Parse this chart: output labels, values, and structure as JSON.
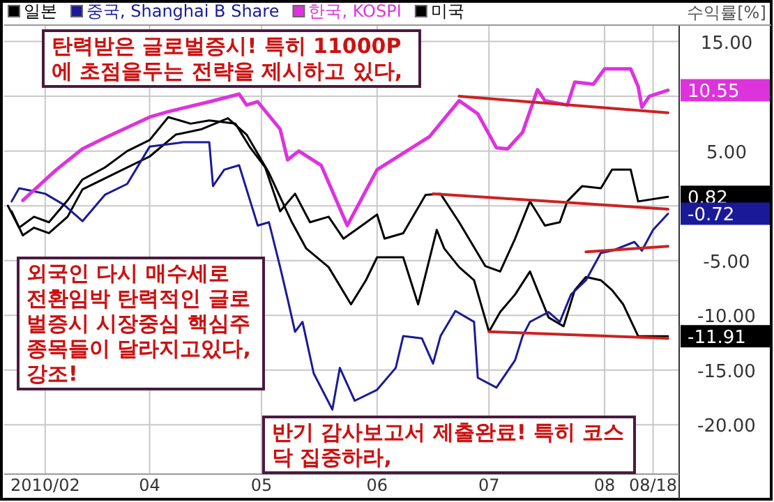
{
  "chart_data": {
    "type": "line",
    "ylabel": "수익률[%]",
    "xlim": [
      "2010-02-21",
      "2010-08-21"
    ],
    "xticks": [
      {
        "value": "2010-03-04",
        "label": "2010/02"
      },
      {
        "value": "2010-04-01",
        "label": "04"
      },
      {
        "value": "2010-05-01",
        "label": "05"
      },
      {
        "value": "2010-06-01",
        "label": "06"
      },
      {
        "value": "2010-07-01",
        "label": "07"
      },
      {
        "value": "2010-08-01",
        "label": "08"
      },
      {
        "value": "2010-08-14",
        "label": "08/18"
      }
    ],
    "ylim": [
      -24.5,
      16.5
    ],
    "yticks": [
      {
        "value": 15,
        "label": "15.00"
      },
      {
        "value": 10,
        "label": null
      },
      {
        "value": 5,
        "label": "5.00"
      },
      {
        "value": 0,
        "label": null
      },
      {
        "value": -5,
        "label": "-5.00"
      },
      {
        "value": -10,
        "label": "-10.00"
      },
      {
        "value": -15,
        "label": "-15.00"
      },
      {
        "value": -20,
        "label": "-20.00"
      }
    ],
    "grid": true,
    "legend": "top",
    "series": [
      {
        "name": "일본",
        "color": "#000000",
        "x": [
          "2010-02-23",
          "2010-02-26",
          "2010-03-01",
          "2010-03-05",
          "2010-03-10",
          "2010-03-14",
          "2010-03-20",
          "2010-03-26",
          "2010-04-01",
          "2010-04-08",
          "2010-04-15",
          "2010-04-22",
          "2010-04-27",
          "2010-05-03",
          "2010-05-09",
          "2010-05-13",
          "2010-05-19",
          "2010-05-25",
          "2010-05-29",
          "2010-06-01",
          "2010-06-08",
          "2010-06-12",
          "2010-06-17",
          "2010-06-19",
          "2010-06-23",
          "2010-06-27",
          "2010-07-01",
          "2010-07-04",
          "2010-07-08",
          "2010-07-12",
          "2010-07-14",
          "2010-07-17",
          "2010-07-21",
          "2010-07-24",
          "2010-07-27",
          "2010-07-31",
          "2010-08-03",
          "2010-08-06",
          "2010-08-10",
          "2010-08-18"
        ],
        "values": [
          -0.5,
          -2.7,
          -2.0,
          -2.5,
          -1.0,
          1.5,
          2.5,
          3.5,
          4.5,
          6.5,
          7.0,
          8.0,
          6.5,
          3.0,
          -1.4,
          -3.9,
          -5.6,
          -9.0,
          -6.8,
          -4.7,
          -4.7,
          -9.0,
          -2.2,
          -3.9,
          -5.6,
          -6.8,
          -11.5,
          -9.7,
          -8.1,
          -6.0,
          -7.7,
          -10.2,
          -11.0,
          -7.7,
          -6.5,
          -6.8,
          -7.7,
          -9.0,
          -11.9,
          -11.91
        ]
      },
      {
        "name": "중국, Shanghai B Share",
        "color": "#1a1a99",
        "x": [
          "2010-02-23",
          "2010-02-25",
          "2010-02-28",
          "2010-03-04",
          "2010-03-09",
          "2010-03-14",
          "2010-03-20",
          "2010-03-26",
          "2010-04-01",
          "2010-04-10",
          "2010-04-17",
          "2010-04-18",
          "2010-04-21",
          "2010-04-25",
          "2010-04-28",
          "2010-04-30",
          "2010-05-03",
          "2010-05-06",
          "2010-05-08",
          "2010-05-10",
          "2010-05-12",
          "2010-05-15",
          "2010-05-20",
          "2010-05-22",
          "2010-05-26",
          "2010-06-01",
          "2010-06-06",
          "2010-06-08",
          "2010-06-13",
          "2010-06-16",
          "2010-06-18",
          "2010-06-22",
          "2010-06-27",
          "2010-06-28",
          "2010-07-03",
          "2010-07-08",
          "2010-07-10",
          "2010-07-12",
          "2010-07-17",
          "2010-07-20",
          "2010-07-23",
          "2010-07-27",
          "2010-07-31",
          "2010-08-03",
          "2010-08-09",
          "2010-08-11",
          "2010-08-14",
          "2010-08-18"
        ],
        "values": [
          0.4,
          1.6,
          1.4,
          1.1,
          0.1,
          -1.4,
          1.0,
          2.0,
          5.4,
          5.8,
          5.8,
          1.8,
          3.3,
          3.7,
          0.4,
          -1.8,
          -1.5,
          -5.6,
          -8.5,
          -11.5,
          -10.6,
          -15.3,
          -18.6,
          -14.8,
          -17.8,
          -16.8,
          -14.8,
          -11.9,
          -12.1,
          -14.4,
          -11.9,
          -9.6,
          -10.6,
          -15.7,
          -16.6,
          -14.1,
          -11.9,
          -10.6,
          -9.7,
          -10.6,
          -8.1,
          -6.8,
          -4.3,
          -4.1,
          -3.3,
          -4.1,
          -2.2,
          -0.72
        ]
      },
      {
        "name": "한국, KOSPI",
        "color": "#dd33dd",
        "x": [
          "2010-02-26",
          "2010-03-07",
          "2010-03-14",
          "2010-03-20",
          "2010-04-01",
          "2010-04-06",
          "2010-04-17",
          "2010-04-25",
          "2010-04-27",
          "2010-04-30",
          "2010-05-06",
          "2010-05-08",
          "2010-05-11",
          "2010-05-17",
          "2010-05-24",
          "2010-06-01",
          "2010-06-15",
          "2010-06-23",
          "2010-06-28",
          "2010-07-03",
          "2010-07-06",
          "2010-07-10",
          "2010-07-14",
          "2010-07-16",
          "2010-07-22",
          "2010-07-24",
          "2010-07-29",
          "2010-08-01",
          "2010-08-08",
          "2010-08-10",
          "2010-08-11",
          "2010-08-13",
          "2010-08-18"
        ],
        "values": [
          0.5,
          3.3,
          5.2,
          6.2,
          8.1,
          8.6,
          9.5,
          10.2,
          9.2,
          9.5,
          7.0,
          4.2,
          5.0,
          3.7,
          -1.8,
          3.3,
          6.3,
          9.6,
          8.4,
          5.3,
          5.2,
          6.7,
          10.6,
          9.6,
          9.2,
          11.3,
          11.1,
          12.5,
          12.5,
          10.9,
          9.0,
          10.0,
          10.55
        ]
      },
      {
        "name": "미국",
        "color": "#000000",
        "x": [
          "2010-02-22",
          "2010-02-25",
          "2010-03-01",
          "2010-03-05",
          "2010-03-10",
          "2010-03-14",
          "2010-03-20",
          "2010-03-26",
          "2010-04-01",
          "2010-04-06",
          "2010-04-12",
          "2010-04-17",
          "2010-04-24",
          "2010-04-28",
          "2010-05-02",
          "2010-05-06",
          "2010-05-10",
          "2010-05-14",
          "2010-05-19",
          "2010-05-23",
          "2010-06-01",
          "2010-06-03",
          "2010-06-08",
          "2010-06-14",
          "2010-06-18",
          "2010-06-23",
          "2010-06-30",
          "2010-07-04",
          "2010-07-08",
          "2010-07-12",
          "2010-07-16",
          "2010-07-20",
          "2010-07-22",
          "2010-07-26",
          "2010-07-31",
          "2010-08-03",
          "2010-08-08",
          "2010-08-10",
          "2010-08-18"
        ],
        "values": [
          0.0,
          -2.0,
          -1.0,
          -1.5,
          0.5,
          2.4,
          3.5,
          5.0,
          6.0,
          8.1,
          7.5,
          7.8,
          7.5,
          5.3,
          3.5,
          -0.5,
          1.1,
          -1.5,
          -1.0,
          -3.0,
          -0.8,
          -3.0,
          -2.5,
          1.0,
          1.1,
          -1.5,
          -5.5,
          -6.0,
          -3.0,
          0.4,
          -1.8,
          -1.5,
          0.4,
          1.8,
          1.6,
          3.3,
          3.3,
          0.4,
          0.82
        ]
      },
      {
        "color": "#cc2222",
        "x": [
          "2010-06-23",
          "2010-08-18"
        ],
        "values": [
          10.0,
          8.5
        ]
      },
      {
        "color": "#cc2222",
        "x": [
          "2010-06-16",
          "2010-08-18"
        ],
        "values": [
          1.1,
          -0.3
        ]
      },
      {
        "color": "#cc2222",
        "x": [
          "2010-07-27",
          "2010-08-18"
        ],
        "values": [
          -4.2,
          -3.7
        ]
      },
      {
        "color": "#cc2222",
        "x": [
          "2010-07-01",
          "2010-08-18"
        ],
        "values": [
          -11.5,
          -12.1
        ]
      }
    ],
    "annotations": [
      "탄력받은 글로벌증시! 특히 11000P에 초점을두는 전략을 제시하고 있다,",
      "외국인 다시 매수세로 전환임박 탄력적인 글로벌증시 시장중심 핵심주 종목들이 달라지고있다, 강조!",
      "반기 감사보고서 제출완료! 특히 코스닥 집중하라,",
      {
        "text": "10.55",
        "x": "2010-08-18",
        "y": 10.55
      },
      {
        "text": "0.82",
        "x": "2010-08-18",
        "y": 0.82
      },
      {
        "text": "-0.72",
        "x": "2010-08-18",
        "y": -0.72
      },
      {
        "text": "-11.91",
        "x": "2010-08-18",
        "y": -11.91
      }
    ]
  }
}
